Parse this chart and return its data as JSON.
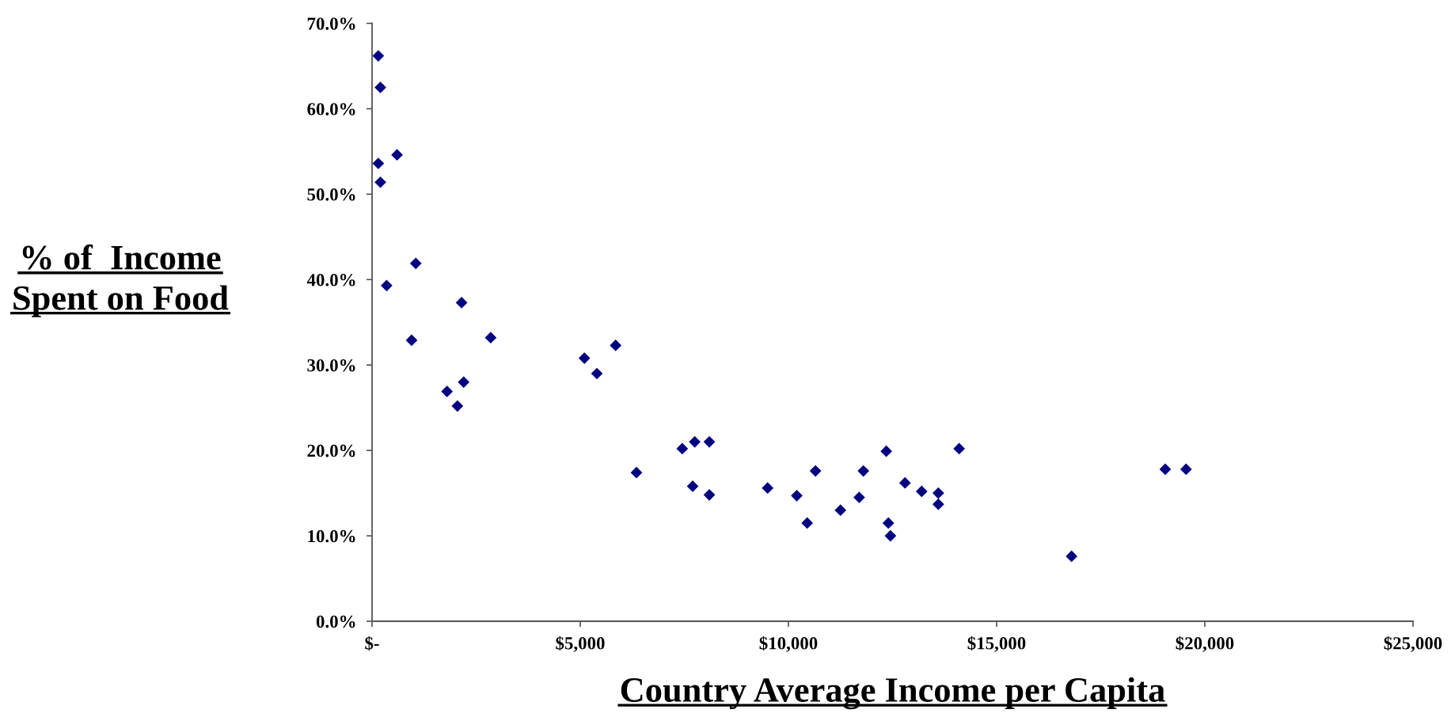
{
  "chart_data": {
    "type": "scatter",
    "xlabel": "Country Average Income per Capita",
    "ylabel": "% of  Income\nSpent on Food",
    "x": [
      150,
      200,
      150,
      600,
      200,
      1050,
      350,
      2150,
      950,
      2850,
      5100,
      5850,
      5400,
      1800,
      2200,
      2050,
      6350,
      7450,
      7750,
      8100,
      7700,
      8100,
      9500,
      10200,
      10450,
      10650,
      11250,
      11700,
      11800,
      12350,
      12400,
      12450,
      12800,
      13200,
      13600,
      13600,
      14100,
      16800,
      19050,
      19550
    ],
    "values": [
      66.2,
      62.5,
      53.6,
      54.6,
      51.4,
      41.9,
      39.3,
      37.3,
      32.9,
      33.2,
      30.8,
      32.3,
      29.0,
      26.9,
      28.0,
      25.2,
      17.4,
      20.2,
      21.0,
      21.0,
      15.8,
      14.8,
      15.6,
      14.7,
      11.5,
      17.6,
      13.0,
      14.5,
      17.6,
      19.9,
      11.5,
      10.0,
      16.2,
      15.2,
      15.0,
      13.7,
      20.2,
      7.6,
      17.8,
      17.8
    ],
    "color": "#000080",
    "marker": "diamond",
    "xlim": [
      0,
      25000
    ],
    "xticks": [
      {
        "value": 0,
        "label": "$-"
      },
      {
        "value": 5000,
        "label": "$5,000"
      },
      {
        "value": 10000,
        "label": "$10,000"
      },
      {
        "value": 15000,
        "label": "$15,000"
      },
      {
        "value": 20000,
        "label": "$20,000"
      },
      {
        "value": 25000,
        "label": "$25,000"
      }
    ],
    "ylim": [
      0,
      70
    ],
    "yticks": [
      {
        "value": 0,
        "label": "0.0%"
      },
      {
        "value": 10,
        "label": "10.0%"
      },
      {
        "value": 20,
        "label": "20.0%"
      },
      {
        "value": 30,
        "label": "30.0%"
      },
      {
        "value": 40,
        "label": "40.0%"
      },
      {
        "value": 50,
        "label": "50.0%"
      },
      {
        "value": 60,
        "label": "60.0%"
      },
      {
        "value": 70,
        "label": "70.0%"
      }
    ]
  }
}
